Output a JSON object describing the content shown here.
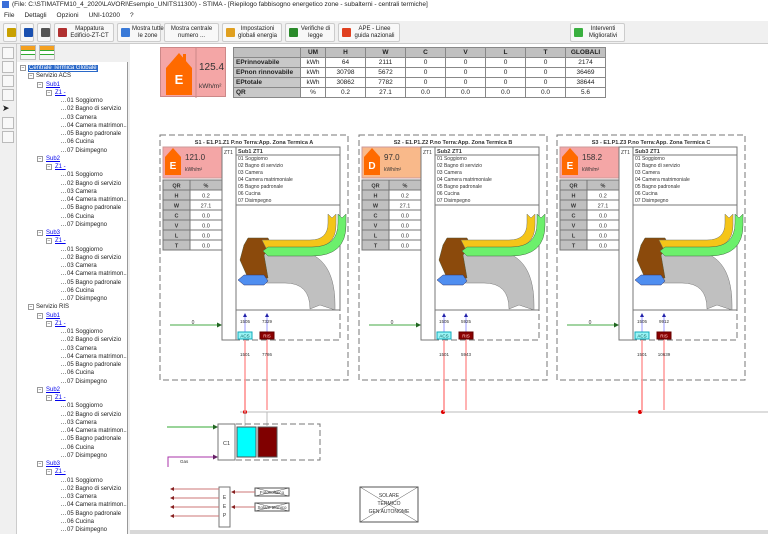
{
  "window": {
    "title": "(File: C:\\STIMATFM10_4_2020\\LAVORI\\Esempio_UNITS11300) - STIMA - [Riepilogo fabbisogno energetico zone - subalterni - centrali termiche]"
  },
  "menu": [
    "File",
    "Dettagli",
    "Opzioni",
    "UNI-10200",
    "?"
  ],
  "toolbar": {
    "buttons": [
      {
        "label": "",
        "icon": "exit-door-icon"
      },
      {
        "label": "",
        "icon": "save-icon"
      },
      {
        "label": "",
        "icon": "print-icon"
      },
      {
        "label": "Mappatura\nEdificio-ZT-CT",
        "icon": "building-map-icon"
      },
      {
        "label": "Mostra tutte\nle zone",
        "icon": "zones-icon"
      },
      {
        "label": "Mostra centrale\nnumero ...",
        "icon": ""
      },
      {
        "label": "Impostazioni\nglobali energia",
        "icon": "energy-settings-icon"
      },
      {
        "label": "Verifiche di\nlegge",
        "icon": "check-icon"
      },
      {
        "label": "APE - Linee\nguida nazionali",
        "icon": "energy-label-icon"
      },
      {
        "label": "Interventi\nMigliorativi",
        "icon": "improvements-icon"
      }
    ]
  },
  "tree": {
    "root": "Centrale Termica Globale",
    "services": [
      {
        "label": "Servizio ACS",
        "subs": [
          {
            "label": "Sub1",
            "zone": "Z1 -",
            "rooms": [
              "01 Soggiorno",
              "02 Bagno di servizio",
              "03 Camera",
              "04 Camera matrimon...",
              "05 Bagno padronale",
              "06 Cucina",
              "07 Disimpegno"
            ]
          },
          {
            "label": "Sub2",
            "zone": "Z1 -",
            "rooms": [
              "01 Soggiorno",
              "02 Bagno di servizio",
              "03 Camera",
              "04 Camera matrimon...",
              "05 Bagno padronale",
              "06 Cucina",
              "07 Disimpegno"
            ]
          },
          {
            "label": "Sub3",
            "zone": "Z1 -",
            "rooms": [
              "01 Soggiorno",
              "02 Bagno di servizio",
              "03 Camera",
              "04 Camera matrimon...",
              "05 Bagno padronale",
              "06 Cucina",
              "07 Disimpegno"
            ]
          }
        ]
      },
      {
        "label": "Servizio RIS",
        "subs": [
          {
            "label": "Sub1",
            "zone": "Z1 -",
            "rooms": [
              "01 Soggiorno",
              "02 Bagno di servizio",
              "03 Camera",
              "04 Camera matrimon...",
              "05 Bagno padronale",
              "06 Cucina",
              "07 Disimpegno"
            ]
          },
          {
            "label": "Sub2",
            "zone": "Z1 -",
            "rooms": [
              "01 Soggiorno",
              "02 Bagno di servizio",
              "03 Camera",
              "04 Camera matrimon...",
              "05 Bagno padronale",
              "06 Cucina",
              "07 Disimpegno"
            ]
          },
          {
            "label": "Sub3",
            "zone": "Z1 -",
            "rooms": [
              "01 Soggiorno",
              "02 Bagno di servizio",
              "03 Camera",
              "04 Camera matrimon...",
              "05 Bagno padronale",
              "06 Cucina",
              "07 Disimpegno"
            ]
          }
        ]
      }
    ]
  },
  "summary": {
    "class": "E",
    "value": "125.4",
    "unit": "kWh/m²",
    "badge_color": "#f4a6a6",
    "house_color": "#ff6a00",
    "headers": [
      "",
      "UM",
      "H",
      "W",
      "C",
      "V",
      "L",
      "T",
      "GLOBALI"
    ],
    "rows": [
      [
        "EPrinnovabile",
        "kWh",
        "64",
        "2111",
        "0",
        "0",
        "0",
        "0",
        "2174"
      ],
      [
        "EPnon rinnovabile",
        "kWh",
        "30798",
        "5672",
        "0",
        "0",
        "0",
        "0",
        "36469"
      ],
      [
        "EPtotale",
        "kWh",
        "30862",
        "7782",
        "0",
        "0",
        "0",
        "0",
        "38644"
      ],
      [
        "QR",
        "%",
        "0.2",
        "27.1",
        "0.0",
        "0.0",
        "0.0",
        "0.0",
        "5.6"
      ]
    ]
  },
  "zones": [
    {
      "title": "S1 - E1.P1.Z1 P.no Terra:App. Zona Termica A",
      "class": "E",
      "value": "121.0",
      "unit": "kWh/m²",
      "badge_color": "#f4a6a6",
      "qr_header": [
        "QR",
        "%"
      ],
      "qr": [
        [
          "H",
          "0.2"
        ],
        [
          "W",
          "27.1"
        ],
        [
          "C",
          "0.0"
        ],
        [
          "V",
          "0.0"
        ],
        [
          "L",
          "0.0"
        ],
        [
          "T",
          "0.0"
        ]
      ],
      "zt": "ZT1",
      "list_header": "Sub1 ZT1",
      "rooms": [
        "01 Soggiorno",
        "02 Bagno di servizio",
        "03 Camera",
        "04 Camera matrimoniale",
        "05 Bagno padronale",
        "06 Cucina",
        "07 Disimpegno"
      ],
      "input": "0",
      "acs": "ACS",
      "ris": "RIS",
      "acs_out": "1505",
      "ris_out": "7329",
      "acs_in": "1501",
      "ris_in": "7786"
    },
    {
      "title": "S2 - E1.P1.Z2 P.no Terra:App. Zona Termica B",
      "class": "D",
      "value": "97.0",
      "unit": "kWh/m²",
      "badge_color": "#f9b98a",
      "qr_header": [
        "QR",
        "%"
      ],
      "qr": [
        [
          "H",
          "0.2"
        ],
        [
          "W",
          "27.1"
        ],
        [
          "C",
          "0.0"
        ],
        [
          "V",
          "0.0"
        ],
        [
          "L",
          "0.0"
        ],
        [
          "T",
          "0.0"
        ]
      ],
      "zt": "ZT1",
      "list_header": "Sub2 ZT1",
      "rooms": [
        "01 Soggiorno",
        "02 Bagno di servizio",
        "03 Camera",
        "04 Camera matrimoniale",
        "05 Bagno padronale",
        "06 Cucina",
        "07 Disimpegno"
      ],
      "input": "0",
      "acs": "ACS",
      "ris": "RIS",
      "acs_out": "1505",
      "ris_out": "5925",
      "acs_in": "1501",
      "ris_in": "5943"
    },
    {
      "title": "S3 - E1.P1.Z3 P.no Terra:App. Zona Termica C",
      "class": "E",
      "value": "158.2",
      "unit": "kWh/m²",
      "badge_color": "#f4a6a6",
      "qr_header": [
        "QR",
        "%"
      ],
      "qr": [
        [
          "H",
          "0.2"
        ],
        [
          "W",
          "27.1"
        ],
        [
          "C",
          "0.0"
        ],
        [
          "V",
          "0.0"
        ],
        [
          "L",
          "0.0"
        ],
        [
          "T",
          "0.0"
        ]
      ],
      "zt": "ZT1",
      "list_header": "Sub3 ZT1",
      "rooms": [
        "01 Soggiorno",
        "02 Bagno di servizio",
        "03 Camera",
        "04 Camera matrimoniale",
        "05 Bagno padronale",
        "06 Cucina",
        "07 Disimpegno"
      ],
      "input": "0",
      "acs": "ACS",
      "ris": "RIS",
      "acs_out": "1505",
      "ris_out": "9912",
      "acs_in": "1501",
      "ris_in": "10639"
    }
  ],
  "plant": {
    "generator": "C1",
    "fuel": "Gas",
    "acs_color": "#00ffff",
    "ris_color": "#800000",
    "electric_labels": [
      "E",
      "E",
      "P"
    ],
    "pv": "Fotovoltaico",
    "solar_small": "Solare termico",
    "solar_box": [
      "SOLARE",
      "TERMICO",
      "GEN AUTONOME"
    ]
  }
}
